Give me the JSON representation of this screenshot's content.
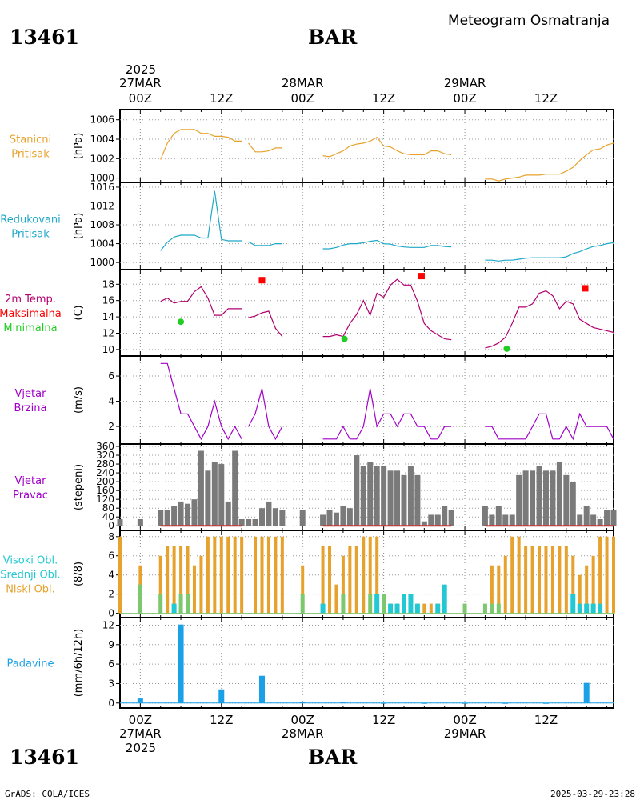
{
  "header": {
    "station_top": "13461",
    "station_bottom": "13461",
    "code_top": "BAR",
    "code_bottom": "BAR",
    "product": "Meteogram Osmatranja",
    "credit": "GrADS: COLA/IGES",
    "timestamp": "2025-03-29-23:28"
  },
  "time_axis": {
    "top_year": "2025",
    "bottom_year": "2025",
    "ticks": [
      {
        "h": 0,
        "label": "00Z",
        "date": "27MAR"
      },
      {
        "h": 12,
        "label": "12Z",
        "date": ""
      },
      {
        "h": 24,
        "label": "00Z",
        "date": "28MAR"
      },
      {
        "h": 36,
        "label": "12Z",
        "date": ""
      },
      {
        "h": 48,
        "label": "00Z",
        "date": "29MAR"
      },
      {
        "h": 60,
        "label": "12Z",
        "date": ""
      }
    ],
    "range_hours": [
      -3,
      70
    ]
  },
  "colors": {
    "pressure": "#e6a22d",
    "reduced": "#1ea8c8",
    "temp_line": "#b0006e",
    "tmax": "#ff0000",
    "tmin": "#22cc22",
    "wind": "#a000c8",
    "bars_gray": "#7a7a7a",
    "cloud_high": "#22c8d2",
    "cloud_mid": "#7cc86e",
    "cloud_low": "#e6a22d",
    "precip": "#1aa0e6"
  },
  "chart_data": [
    {
      "id": "pressure",
      "type": "line",
      "label": [
        "Stanicni",
        "Pritisak"
      ],
      "ylabel": "(hPa)",
      "ylim": [
        999.8,
        1006.8
      ],
      "yticks": [
        1000,
        1002,
        1004,
        1006
      ],
      "series": [
        {
          "x": [
            3,
            4,
            5,
            6,
            7,
            8,
            9,
            10,
            11,
            12,
            13,
            14,
            15
          ],
          "y": [
            1001.9,
            1003.6,
            1004.6,
            1005.0,
            1005.0,
            1005.0,
            1004.6,
            1004.6,
            1004.3,
            1004.3,
            1004.2,
            1003.8,
            1003.8
          ]
        },
        {
          "x": [
            16,
            17,
            18,
            19,
            20,
            21
          ],
          "y": [
            1003.6,
            1002.7,
            1002.7,
            1002.8,
            1003.1,
            1003.1
          ]
        },
        {
          "x": [
            27,
            28,
            29,
            30,
            31,
            32,
            33,
            34,
            35,
            36,
            37,
            38,
            39,
            40,
            41,
            42,
            43,
            44,
            45,
            46
          ],
          "y": [
            1002.3,
            1002.2,
            1002.5,
            1002.8,
            1003.3,
            1003.5,
            1003.6,
            1003.8,
            1004.2,
            1003.3,
            1003.2,
            1002.8,
            1002.5,
            1002.4,
            1002.4,
            1002.4,
            1002.8,
            1002.8,
            1002.5,
            1002.4
          ]
        },
        {
          "x": [
            51,
            52,
            53,
            54,
            55,
            56,
            57,
            58,
            59,
            60,
            61,
            62,
            63,
            64,
            65,
            66,
            67,
            68,
            69,
            70
          ],
          "y": [
            999.9,
            999.9,
            999.7,
            999.9,
            1000.0,
            1000.1,
            1000.3,
            1000.3,
            1000.3,
            1000.4,
            1000.4,
            1000.4,
            1000.7,
            1001.1,
            1001.8,
            1002.4,
            1002.9,
            1003.0,
            1003.4,
            1003.6
          ]
        }
      ]
    },
    {
      "id": "reduced",
      "type": "line",
      "label": [
        "Redukovani",
        "Pritisak"
      ],
      "ylabel": "(hPa)",
      "ylim": [
        999.0,
        1016.5
      ],
      "yticks": [
        1000,
        1004,
        1008,
        1012,
        1016
      ],
      "series": [
        {
          "x": [
            3,
            4,
            5,
            6,
            7,
            8,
            9,
            10,
            11,
            12,
            13,
            14,
            15
          ],
          "y": [
            1002.5,
            1004.3,
            1005.4,
            1005.8,
            1005.8,
            1005.8,
            1005.2,
            1005.2,
            1015.2,
            1004.9,
            1004.6,
            1004.6,
            1004.6
          ]
        },
        {
          "x": [
            16,
            17,
            18,
            19,
            20,
            21
          ],
          "y": [
            1004.4,
            1003.6,
            1003.6,
            1003.6,
            1004.0,
            1004.0
          ]
        },
        {
          "x": [
            27,
            28,
            29,
            30,
            31,
            32,
            33,
            34,
            35,
            36,
            37,
            38,
            39,
            40,
            41,
            42,
            43,
            44,
            45,
            46
          ],
          "y": [
            1002.9,
            1002.9,
            1003.2,
            1003.7,
            1004.0,
            1004.0,
            1004.2,
            1004.5,
            1004.7,
            1004.0,
            1003.9,
            1003.5,
            1003.3,
            1003.2,
            1003.2,
            1003.2,
            1003.6,
            1003.6,
            1003.4,
            1003.3
          ]
        },
        {
          "x": [
            51,
            52,
            53,
            54,
            55,
            56,
            57,
            58,
            59,
            60,
            61,
            62,
            63,
            64,
            65,
            66,
            67,
            68,
            69,
            70
          ],
          "y": [
            1000.5,
            1000.5,
            1000.3,
            1000.5,
            1000.5,
            1000.7,
            1000.9,
            1001.0,
            1001.0,
            1001.0,
            1001.0,
            1001.0,
            1001.2,
            1001.9,
            1002.3,
            1002.9,
            1003.4,
            1003.6,
            1004.0,
            1004.2
          ]
        }
      ]
    },
    {
      "id": "temperature",
      "type": "line",
      "label": [
        "2m Temp.",
        "Maksimalna",
        "Minimalna"
      ],
      "ylabel": "(C)",
      "ylim": [
        9.5,
        19.5
      ],
      "yticks": [
        10,
        12,
        14,
        16,
        18
      ],
      "series": [
        {
          "x": [
            3,
            4,
            5,
            6,
            7,
            8,
            9,
            10,
            11,
            12,
            13,
            14,
            15
          ],
          "y": [
            15.9,
            16.3,
            15.7,
            15.9,
            15.9,
            17.1,
            17.7,
            16.3,
            14.2,
            14.2,
            15.0,
            15.0,
            15.0
          ]
        },
        {
          "x": [
            16,
            17,
            18,
            19,
            20,
            21
          ],
          "y": [
            13.9,
            14.1,
            14.5,
            14.7,
            12.6,
            11.6
          ]
        },
        {
          "x": [
            27,
            28,
            29,
            30,
            31,
            32,
            33,
            34,
            35,
            36,
            37,
            38,
            39,
            40,
            41,
            42,
            43,
            44,
            45,
            46
          ],
          "y": [
            11.6,
            11.6,
            11.8,
            11.6,
            13.2,
            14.3,
            16.0,
            14.2,
            16.9,
            16.4,
            17.9,
            18.6,
            17.9,
            17.9,
            15.9,
            13.2,
            12.3,
            11.8,
            11.3,
            11.2
          ]
        },
        {
          "x": [
            51,
            52,
            53,
            54,
            55,
            56,
            57,
            58,
            59,
            60,
            61,
            62,
            63,
            64,
            65,
            66,
            67,
            68,
            69,
            70
          ],
          "y": [
            10.2,
            10.4,
            10.8,
            11.5,
            13.2,
            15.2,
            15.2,
            15.6,
            16.9,
            17.2,
            16.6,
            15.0,
            15.9,
            15.6,
            13.7,
            13.2,
            12.7,
            12.5,
            12.3,
            12.1
          ]
        }
      ],
      "tmax": [
        {
          "x": 18,
          "y": 18.5
        },
        {
          "x": 41.6,
          "y": 19.0
        },
        {
          "x": 65.8,
          "y": 17.5
        }
      ],
      "tmin": [
        {
          "x": 6,
          "y": 13.4
        },
        {
          "x": 30.2,
          "y": 11.3
        },
        {
          "x": 54.2,
          "y": 10.1
        }
      ]
    },
    {
      "id": "wind_speed",
      "type": "line",
      "label": [
        "Vjetar",
        "Brzina"
      ],
      "ylabel": "(m/s)",
      "ylim": [
        0.8,
        7.4
      ],
      "yticks": [
        2,
        4,
        6
      ],
      "series": [
        {
          "x": [
            3,
            4,
            5,
            6,
            7,
            8,
            9,
            10,
            11,
            12,
            13,
            14,
            15
          ],
          "y": [
            7,
            7,
            5,
            3,
            3,
            2,
            1,
            2,
            4,
            2,
            1,
            2,
            1
          ]
        },
        {
          "x": [
            16,
            17,
            18,
            19,
            20,
            21
          ],
          "y": [
            2,
            3,
            5,
            2,
            1,
            2
          ]
        },
        {
          "x": [
            27,
            28,
            29,
            30,
            31,
            32,
            33,
            34,
            35,
            36,
            37,
            38,
            39,
            40,
            41,
            42,
            43,
            44,
            45,
            46
          ],
          "y": [
            1,
            1,
            1,
            2,
            1,
            1,
            2,
            5,
            2,
            3,
            3,
            2,
            3,
            3,
            2,
            2,
            1,
            1,
            2,
            2
          ]
        },
        {
          "x": [
            51,
            52,
            53,
            54,
            55,
            56,
            57,
            58,
            59,
            60,
            61,
            62,
            63,
            64,
            65,
            66,
            67,
            68,
            69,
            70
          ],
          "y": [
            2,
            2,
            1,
            1,
            1,
            1,
            1,
            2,
            3,
            3,
            1,
            1,
            2,
            1,
            3,
            2,
            2,
            2,
            2,
            1
          ]
        }
      ]
    },
    {
      "id": "wind_dir",
      "type": "bar",
      "label": [
        "Vjetar",
        "Pravac"
      ],
      "ylabel": "(stepeni)",
      "ylim": [
        -10,
        360
      ],
      "yticks": [
        0,
        40,
        80,
        120,
        160,
        200,
        240,
        280,
        320,
        360
      ],
      "x": [
        -3,
        0,
        3,
        4,
        5,
        6,
        7,
        8,
        9,
        10,
        11,
        12,
        13,
        14,
        15,
        16,
        17,
        18,
        19,
        20,
        21,
        24,
        27,
        28,
        29,
        30,
        31,
        32,
        33,
        34,
        35,
        36,
        37,
        38,
        39,
        40,
        41,
        42,
        43,
        44,
        45,
        46,
        48,
        51,
        52,
        53,
        54,
        55,
        56,
        57,
        58,
        59,
        60,
        61,
        62,
        63,
        64,
        65,
        66,
        67,
        68,
        69,
        70
      ],
      "values": [
        30,
        30,
        70,
        70,
        90,
        110,
        100,
        120,
        340,
        250,
        290,
        280,
        110,
        340,
        30,
        30,
        30,
        80,
        110,
        80,
        70,
        70,
        50,
        70,
        60,
        90,
        80,
        320,
        270,
        290,
        270,
        270,
        250,
        250,
        230,
        270,
        230,
        20,
        50,
        50,
        90,
        70,
        0,
        90,
        50,
        90,
        50,
        50,
        230,
        250,
        250,
        270,
        250,
        250,
        290,
        230,
        200,
        50,
        90,
        50,
        30,
        70,
        70
      ]
    },
    {
      "id": "clouds",
      "type": "bar",
      "label": [
        "Visoki Obl.",
        "Srednji Obl.",
        "Niski Obl."
      ],
      "ylabel": "(8/8)",
      "ylim": [
        -0.2,
        8.4
      ],
      "yticks": [
        0,
        2,
        4,
        6,
        8
      ],
      "x": [
        -3,
        0,
        3,
        4,
        5,
        6,
        7,
        8,
        9,
        10,
        11,
        12,
        13,
        14,
        15,
        17,
        18,
        19,
        20,
        21,
        24,
        27,
        28,
        29,
        30,
        31,
        32,
        33,
        34,
        35,
        36,
        37,
        38,
        39,
        40,
        41,
        42,
        43,
        44,
        45,
        46,
        48,
        51,
        52,
        53,
        54,
        55,
        56,
        57,
        58,
        59,
        60,
        61,
        62,
        63,
        64,
        65,
        66,
        67,
        68,
        69,
        70
      ],
      "series": [
        {
          "name": "Visoki Obl.",
          "values": [
            0,
            0,
            0,
            0,
            1,
            0,
            0,
            0,
            0,
            0,
            0,
            0,
            0,
            0,
            0,
            0,
            0,
            0,
            0,
            0,
            0,
            1,
            0,
            0,
            0,
            0,
            0,
            0,
            0,
            2,
            0,
            1,
            1,
            2,
            2,
            1,
            0,
            0,
            1,
            3,
            0,
            0,
            0,
            0,
            0,
            0,
            0,
            0,
            0,
            0,
            0,
            0,
            0,
            0,
            0,
            2,
            1,
            1,
            1,
            1,
            0,
            0
          ]
        },
        {
          "name": "Srednji Obl.",
          "values": [
            0,
            3,
            2,
            0,
            0,
            2,
            2,
            0,
            0,
            0,
            0,
            0,
            0,
            0,
            0,
            0,
            0,
            0,
            0,
            0,
            2,
            0,
            0,
            0,
            2,
            0,
            0,
            0,
            2,
            2,
            2,
            0,
            0,
            1,
            0,
            0,
            0,
            0,
            0,
            0,
            0,
            1,
            1,
            1,
            1,
            0,
            0,
            0,
            0,
            0,
            0,
            0,
            0,
            0,
            0,
            0,
            0,
            0,
            0,
            0,
            0,
            0
          ]
        },
        {
          "name": "Niski Obl.",
          "values": [
            8,
            5,
            6,
            7,
            7,
            7,
            7,
            5,
            6,
            8,
            8,
            8,
            8,
            8,
            8,
            8,
            8,
            8,
            8,
            8,
            5,
            7,
            7,
            3,
            6,
            7,
            7,
            8,
            8,
            8,
            1,
            1,
            1,
            1,
            1,
            1,
            1,
            1,
            1,
            0,
            0,
            1,
            0,
            5,
            5,
            6,
            8,
            8,
            7,
            7,
            7,
            7,
            7,
            7,
            7,
            6,
            4,
            5,
            6,
            8,
            8,
            8
          ]
        }
      ]
    },
    {
      "id": "precip",
      "type": "bar",
      "label": [
        "Padavine"
      ],
      "ylabel": "(mm/6h/12h)",
      "ylim": [
        -0.4,
        12.8
      ],
      "yticks": [
        0,
        3,
        6,
        9,
        12
      ],
      "x": [
        0,
        6,
        12,
        18,
        24,
        30,
        36,
        42,
        48,
        54,
        60,
        66
      ],
      "values": [
        0.7,
        12.1,
        2.1,
        4.2,
        0.1,
        0.1,
        0,
        0,
        0,
        0,
        0,
        3.1
      ]
    }
  ]
}
